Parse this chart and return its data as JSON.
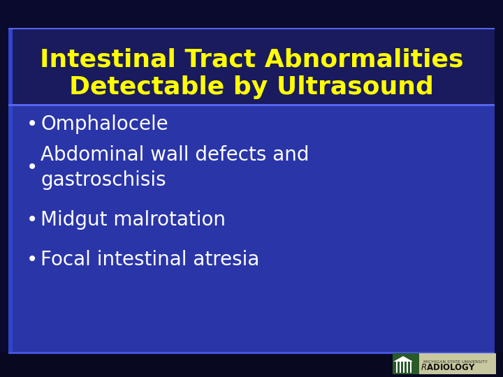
{
  "title_line1": "Intestinal Tract Abnormalities",
  "title_line2": "Detectable by Ultrasound",
  "title_color": "#FFFF00",
  "title_fontsize": 26,
  "bullet_items": [
    "Omphalocele",
    "Abdominal wall defects and\ngastroschisis",
    "Midgut malrotation",
    "Focal intestinal atresia"
  ],
  "bullet_color": "#FFFFFF",
  "bullet_fontsize": 20,
  "bg_dark": "#0a0a2e",
  "bg_main": "#2a35a8",
  "bg_title": "#1a1a5e",
  "left_stripe_color": "#3344cc",
  "sep_line_color": "#5566ee",
  "bottom_bar_color": "#080820",
  "bottom_line_color": "#4455dd",
  "logo_bg": "#c8c8a0",
  "logo_icon_bg": "#2a5a2a",
  "figsize": [
    7.2,
    5.4
  ],
  "dpi": 100
}
